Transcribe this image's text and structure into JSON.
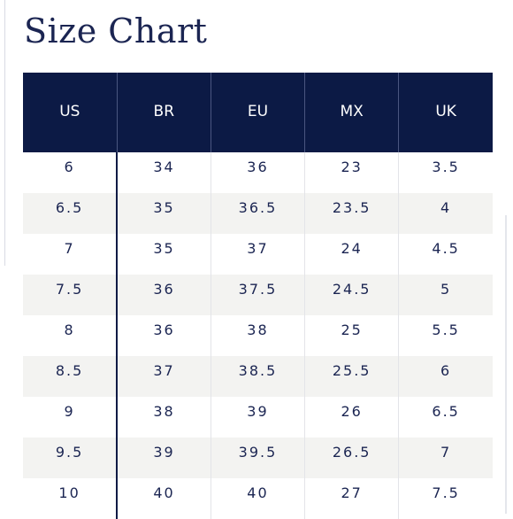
{
  "page": {
    "title": "Size Chart"
  },
  "table": {
    "headers": [
      "US",
      "BR",
      "EU",
      "MX",
      "UK"
    ],
    "rows": [
      [
        "6",
        "34",
        "36",
        "23",
        "3.5"
      ],
      [
        "6.5",
        "35",
        "36.5",
        "23.5",
        "4"
      ],
      [
        "7",
        "35",
        "37",
        "24",
        "4.5"
      ],
      [
        "7.5",
        "36",
        "37.5",
        "24.5",
        "5"
      ],
      [
        "8",
        "36",
        "38",
        "25",
        "5.5"
      ],
      [
        "8.5",
        "37",
        "38.5",
        "25.5",
        "6"
      ],
      [
        "9",
        "38",
        "39",
        "26",
        "6.5"
      ],
      [
        "9.5",
        "39",
        "39.5",
        "26.5",
        "7"
      ],
      [
        "10",
        "40",
        "40",
        "27",
        "7.5"
      ]
    ]
  },
  "colors": {
    "header_background": "#0c1a45",
    "header_text": "#ffffff",
    "title_text": "#1b2552",
    "cell_text": "#1b2552",
    "stripe_background": "#f3f3f1"
  }
}
